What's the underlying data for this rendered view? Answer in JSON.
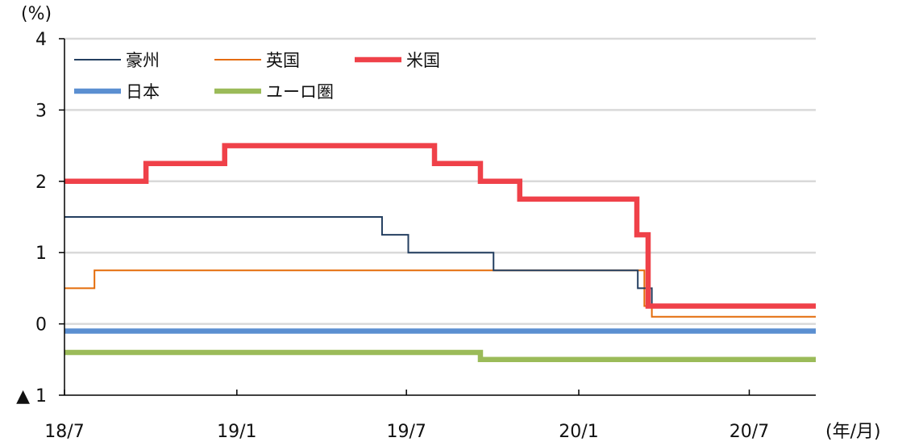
{
  "chart_data": {
    "type": "line",
    "step": true,
    "y_unit": "(%)",
    "x_unit": "(年/月)",
    "ylim": [
      -1,
      4
    ],
    "y_ticks": [
      {
        "value": 4,
        "label": "4"
      },
      {
        "value": 3,
        "label": "3"
      },
      {
        "value": 2,
        "label": "2"
      },
      {
        "value": 1,
        "label": "1"
      },
      {
        "value": 0,
        "label": "0"
      },
      {
        "value": -1,
        "label": "▲ 1"
      }
    ],
    "xlim": [
      "2018-07-01",
      "2020-09-10"
    ],
    "x_ticks": [
      {
        "value": "2018-07-01",
        "label": "18/7"
      },
      {
        "value": "2019-01-01",
        "label": "19/1"
      },
      {
        "value": "2019-07-01",
        "label": "19/7"
      },
      {
        "value": "2020-01-01",
        "label": "20/1"
      },
      {
        "value": "2020-07-01",
        "label": "20/7"
      }
    ],
    "grid": true,
    "legend_position": "top-left",
    "series": [
      {
        "name": "豪州",
        "color": "#243f60",
        "line_weight": "thin",
        "points": [
          {
            "x": "2018-07-01",
            "y": 1.5
          },
          {
            "x": "2019-06-05",
            "y": 1.25
          },
          {
            "x": "2019-07-03",
            "y": 1.0
          },
          {
            "x": "2019-10-02",
            "y": 0.75
          },
          {
            "x": "2020-03-04",
            "y": 0.5
          },
          {
            "x": "2020-03-19",
            "y": 0.25
          },
          {
            "x": "2020-09-10",
            "y": 0.25
          }
        ]
      },
      {
        "name": "英国",
        "color": "#e46c0a",
        "line_weight": "thin",
        "points": [
          {
            "x": "2018-07-01",
            "y": 0.5
          },
          {
            "x": "2018-08-02",
            "y": 0.75
          },
          {
            "x": "2020-03-11",
            "y": 0.25
          },
          {
            "x": "2020-03-19",
            "y": 0.1
          },
          {
            "x": "2020-09-10",
            "y": 0.1
          }
        ]
      },
      {
        "name": "米国",
        "color": "#ef4149",
        "line_weight": "thick",
        "points": [
          {
            "x": "2018-07-01",
            "y": 2.0
          },
          {
            "x": "2018-09-26",
            "y": 2.25
          },
          {
            "x": "2018-12-19",
            "y": 2.5
          },
          {
            "x": "2019-07-31",
            "y": 2.25
          },
          {
            "x": "2019-09-18",
            "y": 2.0
          },
          {
            "x": "2019-10-30",
            "y": 1.75
          },
          {
            "x": "2020-03-03",
            "y": 1.25
          },
          {
            "x": "2020-03-15",
            "y": 0.25
          },
          {
            "x": "2020-09-10",
            "y": 0.25
          }
        ]
      },
      {
        "name": "日本",
        "color": "#5b8fd1",
        "line_weight": "thick",
        "points": [
          {
            "x": "2018-07-01",
            "y": -0.1
          },
          {
            "x": "2020-09-10",
            "y": -0.1
          }
        ]
      },
      {
        "name": "ユーロ圏",
        "color": "#9bbb59",
        "line_weight": "thick",
        "points": [
          {
            "x": "2018-07-01",
            "y": -0.4
          },
          {
            "x": "2019-09-18",
            "y": -0.5
          },
          {
            "x": "2020-09-10",
            "y": -0.5
          }
        ]
      }
    ]
  }
}
